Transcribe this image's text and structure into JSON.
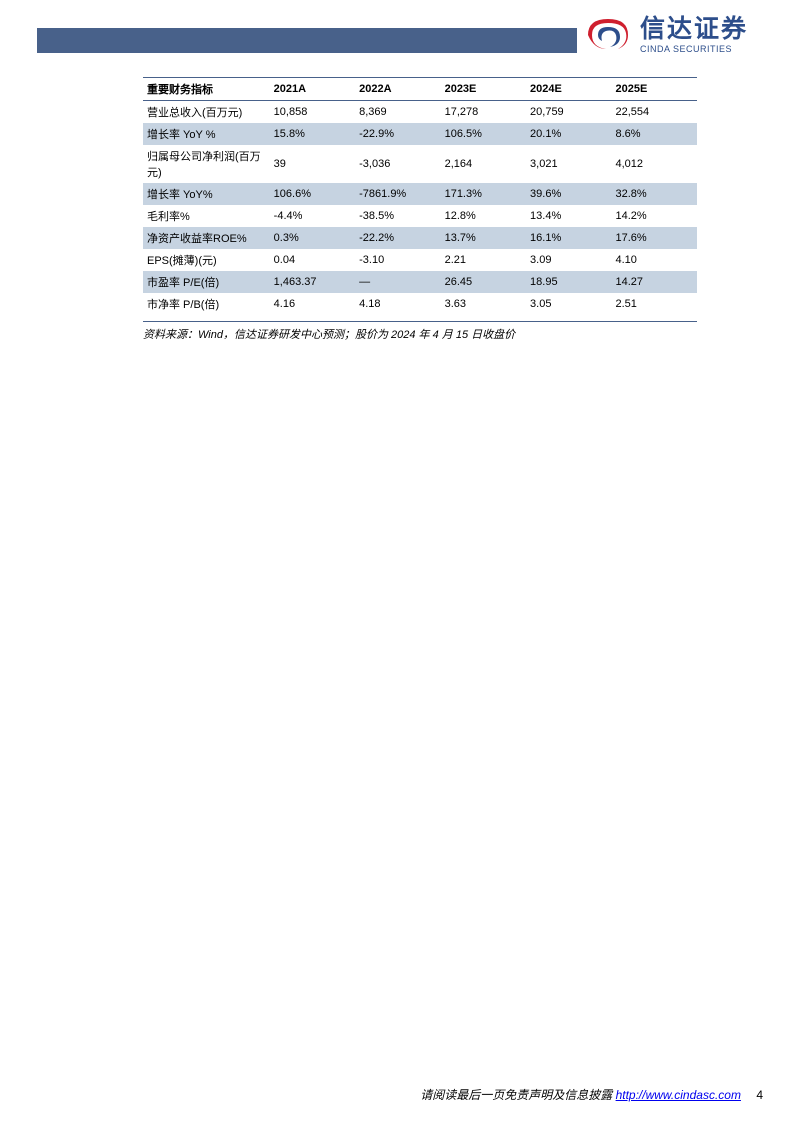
{
  "logo": {
    "cn": "信达证券",
    "en": "CINDA SECURITIES",
    "swirl_outer": "#cf1f2e",
    "swirl_inner": "#2d4e8b"
  },
  "header_bar_color": "#48618a",
  "table": {
    "header_label": "重要财务指标",
    "columns": [
      "2021A",
      "2022A",
      "2023E",
      "2024E",
      "2025E"
    ],
    "rows": [
      {
        "label": "营业总收入(百万元)",
        "values": [
          "10,858",
          "8,369",
          "17,278",
          "20,759",
          "22,554"
        ],
        "shaded": false
      },
      {
        "label": "增长率 YoY %",
        "values": [
          "15.8%",
          "-22.9%",
          "106.5%",
          "20.1%",
          "8.6%"
        ],
        "shaded": true
      },
      {
        "label": "归属母公司净利润(百万元)",
        "values": [
          "39",
          "-3,036",
          "2,164",
          "3,021",
          "4,012"
        ],
        "shaded": false
      },
      {
        "label": "增长率 YoY%",
        "values": [
          "106.6%",
          "-7861.9%",
          "171.3%",
          "39.6%",
          "32.8%"
        ],
        "shaded": true
      },
      {
        "label": "毛利率%",
        "values": [
          "-4.4%",
          "-38.5%",
          "12.8%",
          "13.4%",
          "14.2%"
        ],
        "shaded": false
      },
      {
        "label": "净资产收益率ROE%",
        "values": [
          "0.3%",
          "-22.2%",
          "13.7%",
          "16.1%",
          "17.6%"
        ],
        "shaded": true
      },
      {
        "label": "EPS(摊薄)(元)",
        "values": [
          "0.04",
          "-3.10",
          "2.21",
          "3.09",
          "4.10"
        ],
        "shaded": false
      },
      {
        "label": "市盈率 P/E(倍)",
        "values": [
          "1,463.37",
          "—",
          "26.45",
          "18.95",
          "14.27"
        ],
        "shaded": true
      },
      {
        "label": "市净率 P/B(倍)",
        "values": [
          "4.16",
          "4.18",
          "3.63",
          "3.05",
          "2.51"
        ],
        "shaded": false
      }
    ],
    "border_color": "#48618a",
    "shade_color": "#c6d3e1"
  },
  "source_note": "资料来源：Wind，信达证券研发中心预测；股价为 2024 年 4 月 15 日收盘价",
  "footer": {
    "text": "请阅读最后一页免责声明及信息披露",
    "url_label": "http://www.cindasc.com",
    "page_number": "4"
  }
}
